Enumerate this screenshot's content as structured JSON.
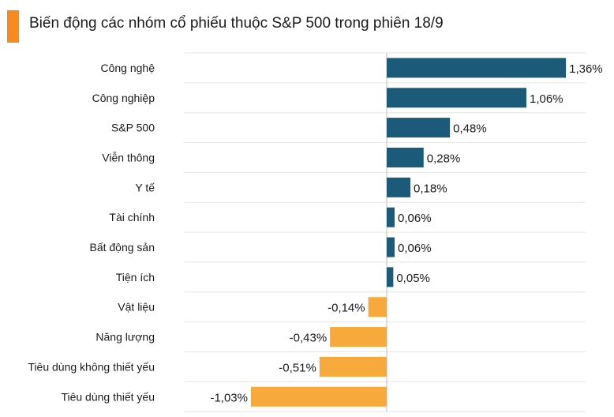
{
  "title": "Biến động các nhóm cổ phiếu thuộc S&P 500 trong phiên 18/9",
  "colors": {
    "positive": "#1b5a78",
    "negative": "#f8a93b",
    "accent": "#f68b1f",
    "grid": "#e6e6e6"
  },
  "chart_data": {
    "type": "bar",
    "orientation": "horizontal",
    "title": "Biến động các nhóm cổ phiếu thuộc S&P 500 trong phiên 18/9",
    "categories": [
      "Công nghệ",
      "Công nghiệp",
      "S&P 500",
      "Viễn thông",
      "Y tế",
      "Tài chính",
      "Bất động sản",
      "Tiện ích",
      "Vật liệu",
      "Năng lượng",
      "Tiêu dùng không thiết yếu",
      "Tiêu dùng thiết yếu"
    ],
    "values": [
      1.36,
      1.06,
      0.48,
      0.28,
      0.18,
      0.06,
      0.06,
      0.05,
      -0.14,
      -0.43,
      -0.51,
      -1.03
    ],
    "value_labels": [
      "1,36%",
      "1,06%",
      "0,48%",
      "0,28%",
      "0,18%",
      "0,06%",
      "0,06%",
      "0,05%",
      "-0,14%",
      "-0,43%",
      "-0,51%",
      "-1,03%"
    ],
    "unit": "%",
    "grid": true,
    "legend": "none"
  }
}
